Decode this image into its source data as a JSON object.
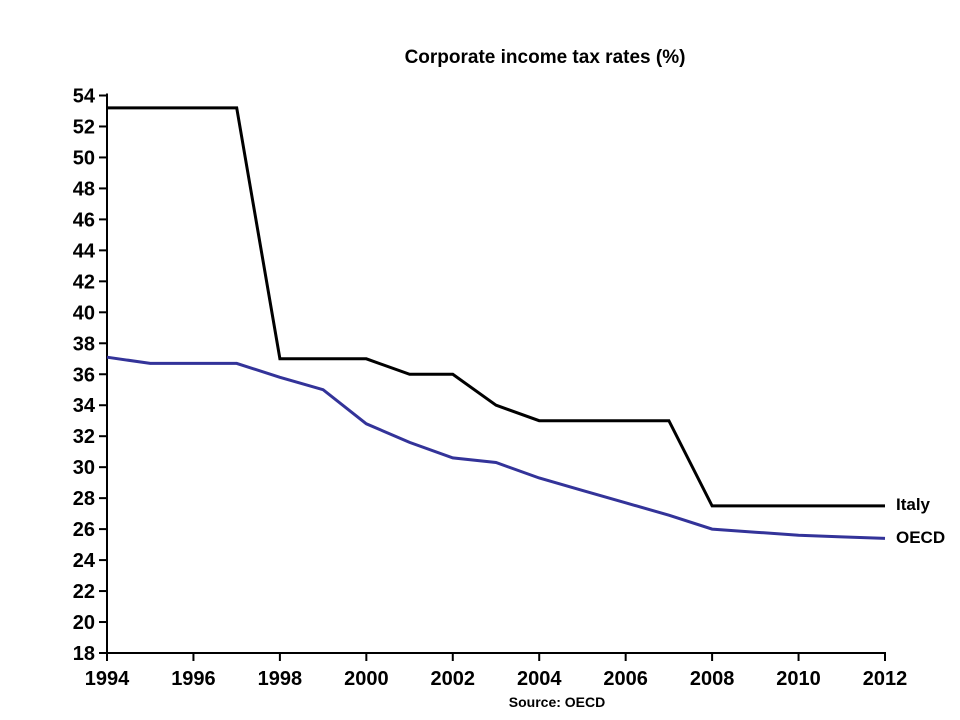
{
  "chart_data": {
    "type": "line",
    "title": "Corporate income tax rates (%)",
    "source": "Source: OECD",
    "xlabel": "",
    "ylabel": "",
    "xlim": [
      1994,
      2012
    ],
    "ylim": [
      18,
      54
    ],
    "x_ticks": [
      1994,
      1996,
      1998,
      2000,
      2002,
      2004,
      2006,
      2008,
      2010,
      2012
    ],
    "y_ticks": [
      18,
      20,
      22,
      24,
      26,
      28,
      30,
      32,
      34,
      36,
      38,
      40,
      42,
      44,
      46,
      48,
      50,
      52,
      54
    ],
    "grid": false,
    "legend_position": "right-end-of-lines",
    "axis_color": "#000000",
    "x": [
      1994,
      1995,
      1996,
      1997,
      1998,
      1999,
      2000,
      2001,
      2002,
      2003,
      2004,
      2005,
      2006,
      2007,
      2008,
      2009,
      2010,
      2011,
      2012
    ],
    "series": [
      {
        "name": "Italy",
        "color": "#000000",
        "values": [
          53.2,
          53.2,
          53.2,
          53.2,
          37,
          37,
          37,
          36,
          36,
          34,
          33,
          33,
          33,
          33,
          27.5,
          27.5,
          27.5,
          27.5,
          27.5
        ]
      },
      {
        "name": "OECD",
        "color": "#333399",
        "values": [
          37.1,
          36.7,
          36.7,
          36.7,
          35.8,
          35.0,
          32.8,
          31.6,
          30.6,
          30.3,
          29.3,
          28.5,
          27.7,
          26.9,
          26.0,
          25.8,
          25.6,
          25.5,
          25.4
        ]
      }
    ]
  }
}
